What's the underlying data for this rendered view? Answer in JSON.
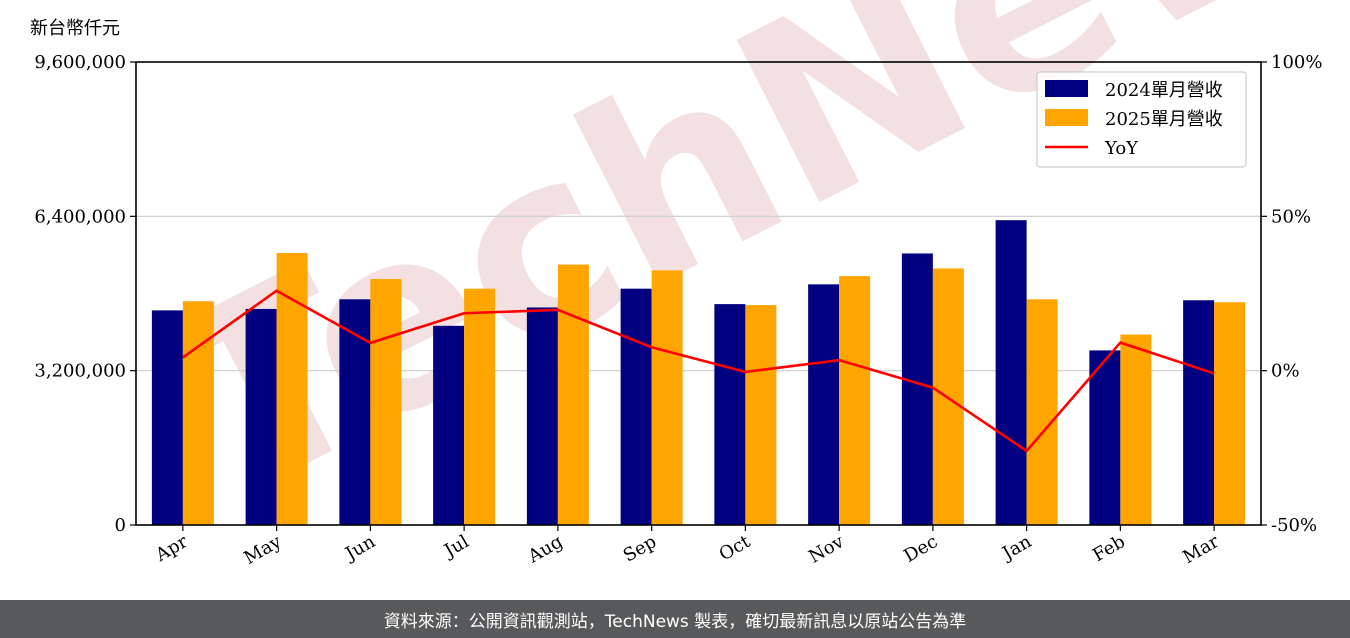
{
  "header": {
    "unit_label": "新台幣仟元"
  },
  "watermark": {
    "text": "TechNews",
    "color": "#e9c9c9"
  },
  "footer": {
    "text": "資料來源：公開資訊觀測站，TechNews 製表，確切最新訊息以原站公告為準"
  },
  "colors": {
    "series2024": "#000080",
    "series2025": "#ffa500",
    "yoy": "#ff0000",
    "grid": "#cccccc"
  },
  "chart_data": {
    "type": "bar",
    "categories": [
      "Apr",
      "May",
      "Jun",
      "Jul",
      "Aug",
      "Sep",
      "Oct",
      "Nov",
      "Dec",
      "Jan",
      "Feb",
      "Mar"
    ],
    "series": [
      {
        "name": "2024單月營收",
        "axis": "left",
        "type": "bar",
        "values": [
          4450000,
          4480000,
          4680000,
          4130000,
          4510000,
          4900000,
          4580000,
          4990000,
          5630000,
          6320000,
          3620000,
          4660000
        ]
      },
      {
        "name": "2025單月營收",
        "axis": "left",
        "type": "bar",
        "values": [
          4640000,
          5640000,
          5100000,
          4900000,
          5400000,
          5280000,
          4560000,
          5160000,
          5320000,
          4680000,
          3950000,
          4620000
        ]
      },
      {
        "name": "YoY",
        "axis": "right",
        "type": "line",
        "values": [
          4.3,
          25.9,
          9.0,
          18.6,
          19.7,
          7.6,
          -0.4,
          3.4,
          -5.5,
          -26.0,
          9.1,
          -0.9
        ]
      }
    ],
    "left_axis": {
      "ylim": [
        0,
        9600000
      ],
      "ticks": [
        "0",
        "3,200,000",
        "6,400,000",
        "9,600,000"
      ]
    },
    "right_axis": {
      "ylim": [
        -50,
        100
      ],
      "ticks": [
        "-50%",
        "0%",
        "50%",
        "100%"
      ]
    },
    "grid": "horizontal",
    "legend": "top-right"
  }
}
